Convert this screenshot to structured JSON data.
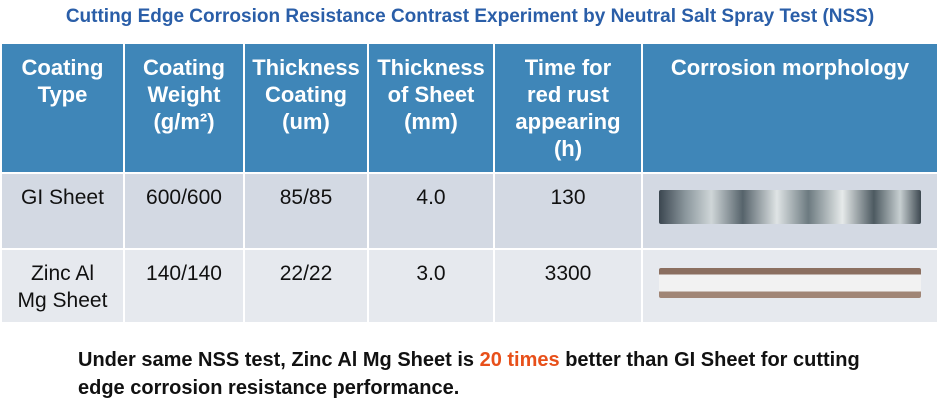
{
  "title": "Cutting Edge Corrosion Resistance Contrast Experiment by Neutral Salt Spray Test (NSS)",
  "table": {
    "header": [
      [
        "Coating",
        "Type"
      ],
      [
        "Coating",
        "Weight",
        "(g/m²)"
      ],
      [
        "Thickness",
        "Coating",
        "(um)"
      ],
      [
        "Thickness",
        "of Sheet",
        "(mm)"
      ],
      [
        "Time for",
        "red rust",
        "appearing",
        "(h)"
      ],
      [
        "Corrosion morphology"
      ]
    ],
    "rows": [
      [
        "GI Sheet",
        "600/600",
        "85/85",
        "4.0",
        "130"
      ],
      [
        "Zinc Al Mg Sheet",
        "140/140",
        "22/22",
        "3.0",
        "3300"
      ]
    ]
  },
  "note": {
    "before": "Under same NSS test, Zinc Al Mg Sheet is ",
    "highlight": "20 times",
    "after": " better than GI Sheet for cutting edge corrosion resistance performance."
  }
}
